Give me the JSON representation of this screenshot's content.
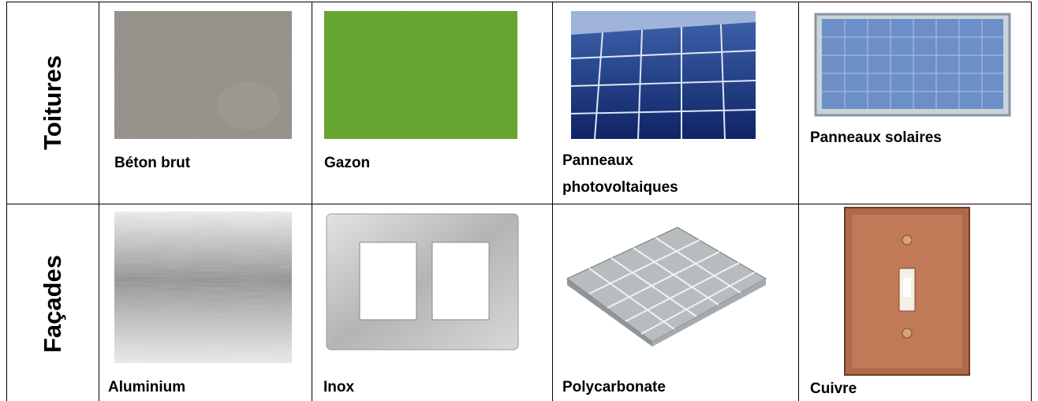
{
  "table": {
    "rows": [
      {
        "header": "Toitures",
        "cells": [
          "Béton brut",
          "Gazon",
          "Panneaux photovoltaiques",
          "Panneaux solaires"
        ]
      },
      {
        "header": "Façades",
        "cells": [
          "Aluminium",
          "Inox",
          "Polycarbonate",
          "Cuivre"
        ]
      }
    ]
  }
}
